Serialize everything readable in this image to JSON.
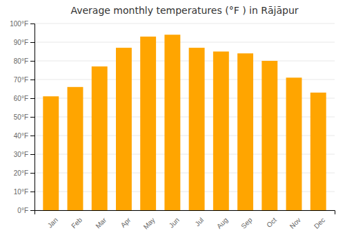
{
  "chart_data": {
    "type": "bar",
    "title": "Average monthly temperatures (°F ) in Rājāpur",
    "categories": [
      "Jan",
      "Feb",
      "Mar",
      "Apr",
      "May",
      "Jun",
      "Jul",
      "Aug",
      "Sep",
      "Oct",
      "Nov",
      "Dec"
    ],
    "values": [
      61,
      66,
      77,
      87,
      93,
      94,
      87,
      85,
      84,
      80,
      71,
      63
    ],
    "color": "#FFA500",
    "ylim": [
      0,
      100
    ],
    "yticks": [
      {
        "value": 0,
        "label": "0°F"
      },
      {
        "value": 10,
        "label": "10°F"
      },
      {
        "value": 20,
        "label": "20°F"
      },
      {
        "value": 30,
        "label": "30°F"
      },
      {
        "value": 40,
        "label": "40°F"
      },
      {
        "value": 50,
        "label": "50°F"
      },
      {
        "value": 60,
        "label": "60°F"
      },
      {
        "value": 70,
        "label": "70°F"
      },
      {
        "value": 80,
        "label": "80°F"
      },
      {
        "value": 90,
        "label": "90°F"
      },
      {
        "value": 100,
        "label": "100°F"
      }
    ],
    "grid": true
  }
}
